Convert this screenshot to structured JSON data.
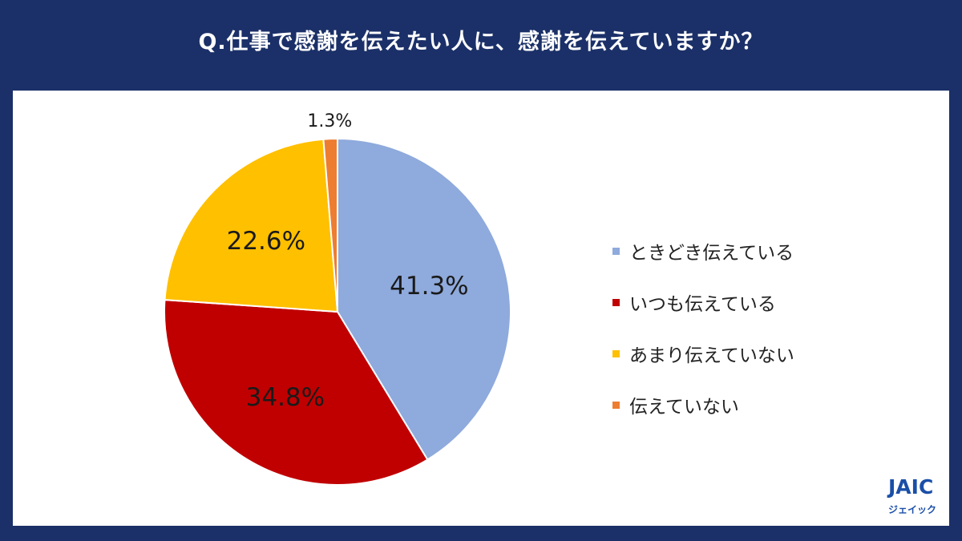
{
  "title": "Q.仕事で感謝を伝えたい人に、感謝を伝えていますか？",
  "chart_data": {
    "type": "pie",
    "categories": [
      "ときどき伝えている",
      "いつも伝えている",
      "あまり伝えていない",
      "伝えていない"
    ],
    "values": [
      41.3,
      34.8,
      22.6,
      1.3
    ],
    "labels": [
      "41.3%",
      "34.8%",
      "22.6%",
      "1.3%"
    ],
    "colors": [
      "#8faadc",
      "#c00000",
      "#ffc000",
      "#ed7d31"
    ],
    "legend_position": "right"
  },
  "logo": {
    "mark": "JAIC",
    "sub": "ジェイック"
  }
}
